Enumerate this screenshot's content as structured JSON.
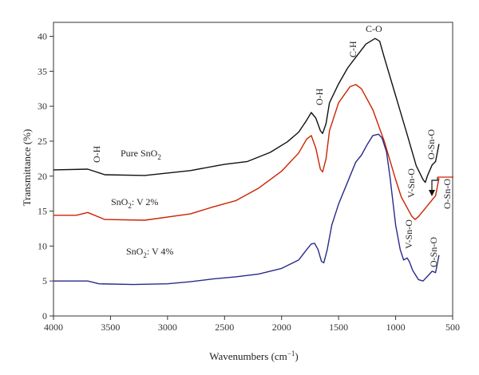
{
  "chart_data": {
    "type": "line",
    "xlabel": "Wavenumbers (cm",
    "xlabel_sup": "−1",
    "xlabel_close": ")",
    "ylabel": "Transmittance (%)",
    "xlim": [
      4000,
      500
    ],
    "ylim": [
      0,
      42
    ],
    "x_ticks": [
      4000,
      3500,
      3000,
      2500,
      2000,
      1500,
      1000,
      500
    ],
    "y_ticks": [
      0,
      5,
      10,
      15,
      20,
      25,
      30,
      35,
      40
    ],
    "grid": false,
    "series": [
      {
        "name": "Pure SnO2",
        "color": "#111111",
        "x": [
          4000,
          3700,
          3550,
          3200,
          2800,
          2500,
          2300,
          2100,
          1950,
          1850,
          1780,
          1740,
          1700,
          1660,
          1640,
          1610,
          1580,
          1500,
          1420,
          1350,
          1260,
          1180,
          1140,
          1100,
          1000,
          900,
          820,
          760,
          740,
          720,
          680,
          650,
          620
        ],
        "y": [
          20.9,
          21.0,
          20.2,
          20.1,
          20.8,
          21.7,
          22.1,
          23.4,
          24.9,
          26.3,
          28.0,
          29.1,
          28.3,
          26.5,
          26.1,
          27.5,
          30.5,
          33.2,
          35.5,
          37.0,
          38.9,
          39.7,
          39.3,
          37.0,
          31.5,
          26.0,
          21.5,
          19.5,
          19.1,
          20.1,
          21.6,
          22.1,
          24.6
        ]
      },
      {
        "name": "SnO2: V 2%",
        "color": "#cc2200",
        "x": [
          4000,
          3800,
          3700,
          3550,
          3200,
          2800,
          2600,
          2400,
          2200,
          2000,
          1850,
          1780,
          1740,
          1700,
          1660,
          1640,
          1610,
          1580,
          1500,
          1400,
          1350,
          1300,
          1200,
          1100,
          1000,
          950,
          900,
          860,
          830,
          800,
          750,
          700,
          650,
          620
        ],
        "y": [
          14.4,
          14.4,
          14.8,
          13.8,
          13.7,
          14.6,
          15.6,
          16.5,
          18.3,
          20.7,
          23.3,
          25.3,
          25.8,
          24.0,
          21.0,
          20.6,
          22.5,
          26.5,
          30.5,
          32.8,
          33.1,
          32.5,
          29.5,
          25.0,
          19.5,
          17.0,
          15.5,
          14.3,
          13.8,
          14.2,
          15.2,
          16.2,
          17.2,
          19.7
        ]
      },
      {
        "name": "SnO2: V 4%",
        "color": "#2a2a8a",
        "x": [
          4000,
          3700,
          3600,
          3300,
          3000,
          2800,
          2600,
          2400,
          2200,
          2000,
          1850,
          1780,
          1740,
          1710,
          1680,
          1650,
          1630,
          1600,
          1560,
          1500,
          1400,
          1350,
          1300,
          1250,
          1200,
          1150,
          1120,
          1080,
          1050,
          1000,
          960,
          930,
          900,
          880,
          850,
          800,
          760,
          720,
          680,
          650,
          620
        ],
        "y": [
          5.0,
          5.0,
          4.6,
          4.5,
          4.6,
          4.9,
          5.3,
          5.6,
          6.0,
          6.8,
          8.0,
          9.5,
          10.3,
          10.4,
          9.5,
          7.8,
          7.6,
          9.5,
          13.0,
          16.0,
          20.0,
          22.0,
          23.0,
          24.5,
          25.8,
          26.0,
          25.5,
          23.5,
          20.0,
          13.0,
          9.5,
          8.0,
          8.3,
          7.8,
          6.5,
          5.2,
          5.0,
          5.7,
          6.4,
          6.2,
          8.7
        ]
      }
    ],
    "series_labels": [
      "Pure SnO",
      "SnO",
      ": V 2%",
      "SnO",
      ": V 4%"
    ],
    "annotations": {
      "oh_left": "O-H",
      "oh_mid": "O-H",
      "ch": "C-H",
      "co": "C-O",
      "osno_black": "O-Sn-O",
      "osno_red": "O-Sn-O",
      "vsno_red": "V-Sn-O",
      "vsno_blue": "V-Sn-O",
      "osno_blue": "O-Sn-O",
      "subscript": "2"
    }
  }
}
